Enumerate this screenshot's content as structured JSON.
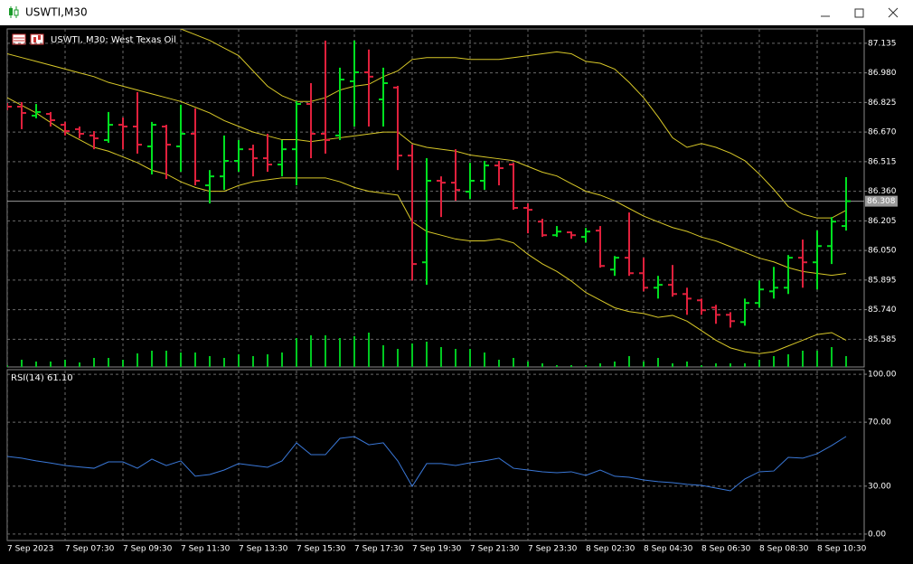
{
  "window": {
    "title": "USWTI,M30"
  },
  "chart_data": [
    {
      "type": "ohlc",
      "title": "USWTI, M30:  West Texas Oil",
      "categories": [
        "7 Sep 2023",
        null,
        null,
        null,
        "7 Sep 07:30",
        null,
        null,
        null,
        "7 Sep 09:30",
        null,
        null,
        null,
        "7 Sep 11:30",
        null,
        null,
        null,
        "7 Sep 13:30",
        null,
        null,
        null,
        "7 Sep 15:30",
        null,
        null,
        null,
        "7 Sep 17:30",
        null,
        null,
        null,
        "7 Sep 19:30",
        null,
        null,
        null,
        "7 Sep 21:30",
        null,
        null,
        null,
        "7 Sep 23:30",
        null,
        null,
        null,
        "8 Sep 02:30",
        null,
        null,
        null,
        "8 Sep 04:30",
        null,
        null,
        null,
        "8 Sep 06:30",
        null,
        null,
        null,
        "8 Sep 08:30",
        null,
        null,
        null,
        "8 Sep 10:30",
        null,
        null
      ],
      "open": [
        86.813,
        86.803,
        86.756,
        86.765,
        86.708,
        86.685,
        86.652,
        86.628,
        86.708,
        86.699,
        86.595,
        86.699,
        86.595,
        86.661,
        86.391,
        86.438,
        86.519,
        86.58,
        86.533,
        86.5,
        86.58,
        86.817,
        86.661,
        86.652,
        86.936,
        86.983,
        86.841,
        86.903,
        86.547,
        85.988,
        86.415,
        86.405,
        86.358,
        86.415,
        86.495,
        86.5,
        86.273,
        86.201,
        86.13,
        86.145,
        86.121,
        86.154,
        85.95,
        86.012,
        85.931,
        85.855,
        85.87,
        85.822,
        85.789,
        85.751,
        85.713,
        85.675,
        85.775,
        85.836,
        85.855,
        86.012,
        85.988,
        86.073,
        86.178
      ],
      "high": [
        86.822,
        86.827,
        86.817,
        86.775,
        86.723,
        86.699,
        86.675,
        86.775,
        86.746,
        86.879,
        86.723,
        86.708,
        86.813,
        86.794,
        86.471,
        86.652,
        86.628,
        86.604,
        86.661,
        86.628,
        86.832,
        86.926,
        87.149,
        87.007,
        87.149,
        87.102,
        87.007,
        86.912,
        86.604,
        86.533,
        86.438,
        86.58,
        86.509,
        86.519,
        86.519,
        86.509,
        86.296,
        86.216,
        86.178,
        86.149,
        86.168,
        86.178,
        86.021,
        86.249,
        86.012,
        85.917,
        85.974,
        85.855,
        85.798,
        85.765,
        85.727,
        85.798,
        85.893,
        85.964,
        86.026,
        86.107,
        86.154,
        86.225,
        86.434
      ],
      "low": [
        86.784,
        86.685,
        86.742,
        86.699,
        86.652,
        86.637,
        86.58,
        86.614,
        86.58,
        86.557,
        86.448,
        86.424,
        86.462,
        86.391,
        86.296,
        86.367,
        86.462,
        86.438,
        86.462,
        86.438,
        86.391,
        86.533,
        86.557,
        86.628,
        86.699,
        86.699,
        86.699,
        86.471,
        85.893,
        85.87,
        86.225,
        86.31,
        86.32,
        86.367,
        86.391,
        86.263,
        86.14,
        86.121,
        86.121,
        86.111,
        86.092,
        85.96,
        85.917,
        85.917,
        85.836,
        85.798,
        85.808,
        85.713,
        85.713,
        85.666,
        85.646,
        85.656,
        85.751,
        85.798,
        85.822,
        85.855,
        85.846,
        85.979,
        86.154
      ],
      "close": [
        86.803,
        86.77,
        86.775,
        86.732,
        86.675,
        86.661,
        86.637,
        86.708,
        86.699,
        86.604,
        86.708,
        86.604,
        86.661,
        86.415,
        86.438,
        86.519,
        86.58,
        86.533,
        86.5,
        86.58,
        86.817,
        86.661,
        86.628,
        86.945,
        86.983,
        86.96,
        86.926,
        86.547,
        85.979,
        86.415,
        86.405,
        86.367,
        86.415,
        86.495,
        86.481,
        86.273,
        86.263,
        86.13,
        86.149,
        86.13,
        86.149,
        85.969,
        86.012,
        85.931,
        85.855,
        85.87,
        85.822,
        85.798,
        85.737,
        85.713,
        85.68,
        85.775,
        85.846,
        85.855,
        86.012,
        85.988,
        86.073,
        86.201,
        86.308
      ],
      "up_color": "#00e020",
      "down_color": "#e0203c",
      "volumes": [
        20,
        80,
        60,
        60,
        80,
        50,
        100,
        100,
        80,
        150,
        180,
        180,
        160,
        160,
        120,
        100,
        140,
        120,
        140,
        160,
        320,
        350,
        350,
        320,
        340,
        380,
        240,
        200,
        260,
        280,
        220,
        200,
        200,
        160,
        80,
        100,
        60,
        40,
        20,
        20,
        20,
        40,
        60,
        120,
        60,
        100,
        40,
        60,
        20,
        40,
        40,
        40,
        80,
        120,
        140,
        180,
        180,
        220,
        120
      ],
      "volume_color": "#00c820",
      "volume_lim": [
        0,
        1000
      ],
      "band_color": "#d8c828",
      "bands": [
        [
          87.55,
          87.53,
          87.5,
          87.48,
          87.46,
          87.43,
          87.41,
          87.39,
          87.36,
          87.32,
          87.29,
          87.25,
          87.21,
          87.18,
          87.15,
          87.11,
          87.07,
          86.99,
          86.91,
          86.86,
          86.83,
          86.83,
          86.85,
          86.89,
          86.91,
          86.92,
          86.96,
          86.99,
          87.05,
          87.06,
          87.06,
          87.06,
          87.05,
          87.05,
          87.05,
          87.06,
          87.07,
          87.08,
          87.09,
          87.08,
          87.04,
          87.03,
          87.0,
          86.93,
          86.85,
          86.75,
          86.64,
          86.59,
          86.61,
          86.59,
          86.56,
          86.52,
          86.45,
          86.37,
          86.28,
          86.24,
          86.22,
          86.22,
          86.26
        ],
        [
          87.08,
          87.06,
          87.04,
          87.02,
          87.0,
          86.98,
          86.96,
          86.93,
          86.91,
          86.89,
          86.87,
          86.85,
          86.83,
          86.8,
          86.77,
          86.73,
          86.7,
          86.67,
          86.65,
          86.63,
          86.63,
          86.62,
          86.63,
          86.64,
          86.65,
          86.66,
          86.67,
          86.67,
          86.61,
          86.59,
          86.58,
          86.57,
          86.55,
          86.54,
          86.53,
          86.52,
          86.49,
          86.46,
          86.44,
          86.4,
          86.36,
          86.34,
          86.31,
          86.27,
          86.23,
          86.2,
          86.17,
          86.15,
          86.12,
          86.1,
          86.07,
          86.04,
          86.01,
          85.99,
          85.96,
          85.94,
          85.93,
          85.92,
          85.93
        ],
        [
          86.85,
          86.81,
          86.77,
          86.72,
          86.67,
          86.63,
          86.59,
          86.57,
          86.54,
          86.51,
          86.47,
          86.45,
          86.41,
          86.38,
          86.36,
          86.36,
          86.39,
          86.41,
          86.42,
          86.43,
          86.43,
          86.43,
          86.43,
          86.41,
          86.38,
          86.36,
          86.35,
          86.34,
          86.2,
          86.15,
          86.13,
          86.11,
          86.1,
          86.1,
          86.11,
          86.09,
          86.03,
          85.98,
          85.94,
          85.89,
          85.83,
          85.79,
          85.75,
          85.73,
          85.72,
          85.7,
          85.71,
          85.68,
          85.63,
          85.58,
          85.54,
          85.52,
          85.51,
          85.52,
          85.55,
          85.58,
          85.61,
          85.62,
          85.58
        ]
      ],
      "current_price": 86.308,
      "ylim": [
        85.44,
        87.21
      ],
      "yticks": [
        87.135,
        {
          "value": 86.98,
          "label": "86.980"
        },
        86.825,
        {
          "value": 86.67,
          "label": "86.670"
        },
        86.515,
        {
          "value": 86.36,
          "label": "86.360"
        },
        86.205,
        {
          "value": 86.05,
          "label": "86.050"
        },
        85.895,
        {
          "value": 85.74,
          "label": "85.740"
        },
        85.585
      ],
      "grid": true
    },
    {
      "type": "line",
      "title": "RSI(14) 61.10",
      "color": "#3a78d8",
      "values": [
        48.6,
        47.5,
        45.8,
        44.5,
        42.9,
        42.0,
        41.2,
        45.2,
        45.2,
        41.2,
        46.9,
        42.9,
        45.8,
        36.2,
        37.3,
        40.1,
        44.1,
        42.9,
        41.8,
        45.8,
        57.1,
        49.7,
        49.7,
        59.9,
        61.0,
        55.9,
        57.1,
        45.8,
        29.9,
        44.1,
        44.1,
        42.9,
        44.6,
        45.8,
        47.5,
        41.2,
        40.1,
        39.0,
        38.4,
        39.0,
        36.7,
        40.1,
        36.2,
        35.6,
        33.9,
        32.8,
        32.2,
        31.1,
        30.5,
        28.8,
        27.1,
        34.5,
        39.0,
        39.5,
        48.0,
        47.5,
        50.3,
        55.4,
        61.1
      ],
      "ylim": [
        -4,
        102.3
      ],
      "yticks": [
        {
          "value": 100,
          "label": "100.00"
        },
        {
          "value": 70,
          "label": "70.00"
        },
        {
          "value": 30,
          "label": "30.00"
        },
        {
          "value": 0,
          "label": "0.00"
        }
      ],
      "grid": true
    }
  ]
}
